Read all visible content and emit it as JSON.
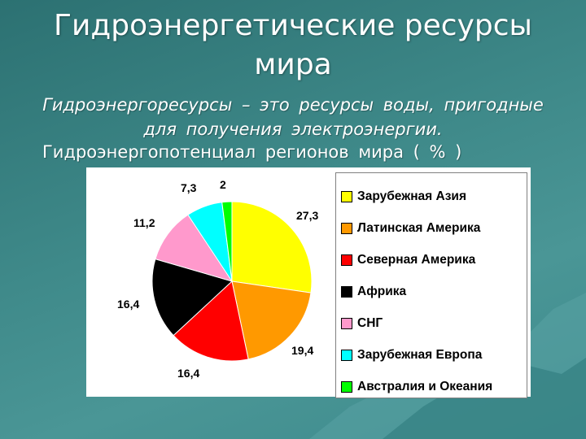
{
  "title": {
    "line1": "Гидроэнергетические ресурсы",
    "line2": "мира"
  },
  "definition": "Гидроэнергоресурсы – это ресурсы воды, пригодные для получения электроэнергии.",
  "subtitle": "Гидроэнергопотенциал регионов мира ( % )",
  "chart_data": {
    "type": "pie",
    "title": "Гидроэнергопотенциал регионов мира ( % )",
    "legend_position": "right",
    "categories": [
      "Зарубежная Азия",
      "Латинская Америка",
      "Северная Америка",
      "Африка",
      "СНГ",
      "Зарубежная Европа",
      "Австралия и Океания"
    ],
    "values": [
      27.3,
      19.4,
      16.4,
      16.4,
      11.2,
      7.3,
      2
    ],
    "data_labels": [
      "27,3",
      "19,4",
      "16,4",
      "16,4",
      "11,2",
      "7,3",
      "2"
    ],
    "colors": [
      "#ffff00",
      "#ff9900",
      "#ff0000",
      "#000000",
      "#ff99cc",
      "#00ffff",
      "#00ff00"
    ]
  }
}
